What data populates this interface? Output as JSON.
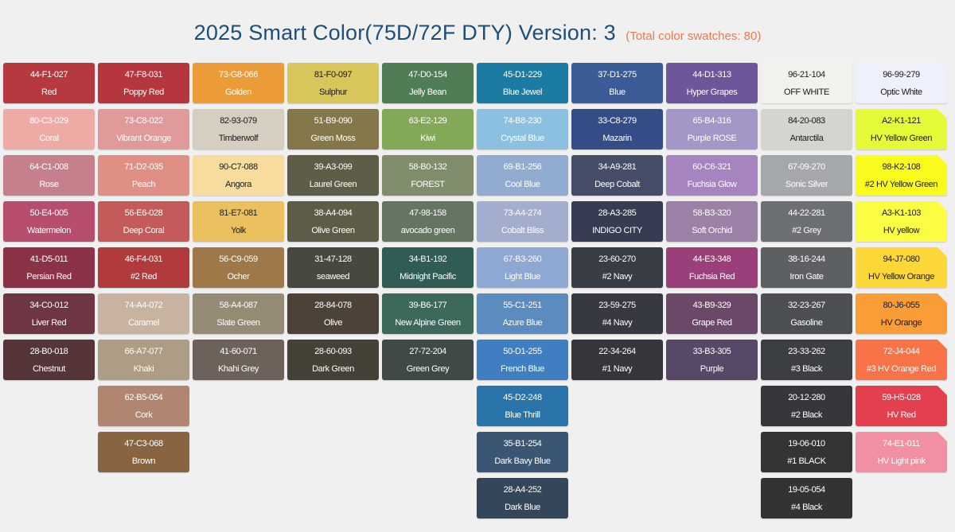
{
  "header": {
    "title": "2025 Smart Color(75D/72F DTY) Version: 3",
    "count": "(Total color swatches: 80)"
  },
  "columns": [
    [
      {
        "code": "44-F1-027",
        "name": "Red",
        "color": "#b5393f",
        "text": "dark"
      },
      {
        "code": "80-C3-029",
        "name": "Coral",
        "color": "#eeaaa5",
        "text": "dark"
      },
      {
        "code": "64-C1-008",
        "name": "Rose",
        "color": "#c6808c",
        "text": "dark"
      },
      {
        "code": "50-E4-005",
        "name": "Watermelon",
        "color": "#b84e6d",
        "text": "dark"
      },
      {
        "code": "41-D5-011",
        "name": "Persian Red",
        "color": "#8c3246",
        "text": "dark"
      },
      {
        "code": "34-C0-012",
        "name": "Liver Red",
        "color": "#6d3642",
        "text": "dark"
      },
      {
        "code": "28-B0-018",
        "name": "Chestnut",
        "color": "#553538",
        "text": "dark"
      }
    ],
    [
      {
        "code": "47-F8-031",
        "name": "Poppy Red",
        "color": "#b5373d",
        "text": "dark"
      },
      {
        "code": "73-C8-022",
        "name": "Vibrant Orange",
        "color": "#e09a9a",
        "text": "dark"
      },
      {
        "code": "71-D2-035",
        "name": "Peach",
        "color": "#e08f84",
        "text": "dark"
      },
      {
        "code": "56-E6-028",
        "name": "Deep Coral",
        "color": "#c55a5b",
        "text": "dark"
      },
      {
        "code": "46-F4-031",
        "name": "#2 Red",
        "color": "#b13a3c",
        "text": "dark"
      },
      {
        "code": "74-A4-072",
        "name": "Caramel",
        "color": "#c7b3a0",
        "text": "dark"
      },
      {
        "code": "66-A7-077",
        "name": "Khaki",
        "color": "#ad9d85",
        "text": "dark"
      },
      {
        "code": "62-B5-054",
        "name": "Cork",
        "color": "#b08670",
        "text": "dark"
      },
      {
        "code": "47-C3-068",
        "name": "Brown",
        "color": "#896440",
        "text": "dark"
      }
    ],
    [
      {
        "code": "73-G8-066",
        "name": "Golden",
        "color": "#eb9c38",
        "text": "dark"
      },
      {
        "code": "82-93-079",
        "name": "Timberwolf",
        "color": "#d7cec2",
        "text": "light"
      },
      {
        "code": "90-C7-088",
        "name": "Angora",
        "color": "#f7dc9e",
        "text": "light"
      },
      {
        "code": "81-E7-081",
        "name": "Yolk",
        "color": "#ebc05f",
        "text": "light"
      },
      {
        "code": "56-C9-059",
        "name": "Ocher",
        "color": "#9e7849",
        "text": "dark"
      },
      {
        "code": "58-A4-087",
        "name": "Slate Green",
        "color": "#958b75",
        "text": "dark"
      },
      {
        "code": "41-60-071",
        "name": "Khahi Grey",
        "color": "#6c6259",
        "text": "dark"
      }
    ],
    [
      {
        "code": "81-F0-097",
        "name": "Sulphur",
        "color": "#d8c65a",
        "text": "light"
      },
      {
        "code": "51-B9-090",
        "name": "Green Moss",
        "color": "#84784a",
        "text": "dark"
      },
      {
        "code": "39-A3-099",
        "name": "Laurel Green",
        "color": "#5e5d48",
        "text": "dark"
      },
      {
        "code": "38-A4-094",
        "name": "Olive Green",
        "color": "#5d5c47",
        "text": "dark"
      },
      {
        "code": "31-47-128",
        "name": "seaweed",
        "color": "#47493e",
        "text": "dark"
      },
      {
        "code": "28-84-078",
        "name": "Olive",
        "color": "#4c4238",
        "text": "dark"
      },
      {
        "code": "28-60-093",
        "name": "Dark Green",
        "color": "#444136",
        "text": "dark"
      }
    ],
    [
      {
        "code": "47-D0-154",
        "name": "Jelly Bean",
        "color": "#4f7d55",
        "text": "dark"
      },
      {
        "code": "63-E2-129",
        "name": "Kiwi",
        "color": "#83a858",
        "text": "dark"
      },
      {
        "code": "58-B0-132",
        "name": "FOREST",
        "color": "#7f8d6c",
        "text": "dark"
      },
      {
        "code": "47-98-158",
        "name": "avocado green",
        "color": "#647562",
        "text": "dark"
      },
      {
        "code": "34-B1-192",
        "name": "Midnight Pacific",
        "color": "#2f5d56",
        "text": "dark"
      },
      {
        "code": "39-B6-177",
        "name": "New Alpine Green",
        "color": "#3d685c",
        "text": "dark"
      },
      {
        "code": "27-72-204",
        "name": "Green Grey",
        "color": "#3f4a48",
        "text": "dark"
      }
    ],
    [
      {
        "code": "45-D1-229",
        "name": "Blue Jewel",
        "color": "#1b7ba3",
        "text": "dark"
      },
      {
        "code": "74-B8-230",
        "name": "Crystal Blue",
        "color": "#8cc0e0",
        "text": "dark"
      },
      {
        "code": "69-B1-256",
        "name": "Cool Blue",
        "color": "#92acd1",
        "text": "dark"
      },
      {
        "code": "73-A4-274",
        "name": "Cobalt Bliss",
        "color": "#a3aecf",
        "text": "dark"
      },
      {
        "code": "67-B3-260",
        "name": "Light Blue",
        "color": "#8da8d3",
        "text": "dark"
      },
      {
        "code": "55-C1-251",
        "name": "Azure Blue",
        "color": "#5b8bbf",
        "text": "dark"
      },
      {
        "code": "50-D1-255",
        "name": "French Blue",
        "color": "#3f7ec0",
        "text": "dark"
      },
      {
        "code": "45-D2-248",
        "name": "Blue Thrill",
        "color": "#2974a8",
        "text": "dark"
      },
      {
        "code": "35-B1-254",
        "name": "Dark Bavy Blue",
        "color": "#3b5673",
        "text": "dark"
      },
      {
        "code": "28-A4-252",
        "name": "Dark Blue",
        "color": "#34465a",
        "text": "dark"
      }
    ],
    [
      {
        "code": "37-D1-275",
        "name": "Blue",
        "color": "#3c5c97",
        "text": "dark"
      },
      {
        "code": "33-C8-279",
        "name": "Mazarin",
        "color": "#354d87",
        "text": "dark"
      },
      {
        "code": "34-A9-281",
        "name": "Deep Cobalt",
        "color": "#454d68",
        "text": "dark"
      },
      {
        "code": "28-A3-285",
        "name": "INDIGO CITY",
        "color": "#363c52",
        "text": "dark"
      },
      {
        "code": "23-60-270",
        "name": "#2 Navy",
        "color": "#383c45",
        "text": "dark"
      },
      {
        "code": "23-59-275",
        "name": "#4 Navy",
        "color": "#363942",
        "text": "dark"
      },
      {
        "code": "22-34-264",
        "name": "#1 Navy",
        "color": "#34363c",
        "text": "dark"
      }
    ],
    [
      {
        "code": "44-D1-313",
        "name": "Hyper Grapes",
        "color": "#6f5599",
        "text": "dark"
      },
      {
        "code": "65-B4-316",
        "name": "Purple ROSE",
        "color": "#a596c8",
        "text": "dark"
      },
      {
        "code": "60-C6-321",
        "name": "Fuchsia Glow",
        "color": "#a584c0",
        "text": "dark"
      },
      {
        "code": "58-B3-320",
        "name": "Soft Orchid",
        "color": "#9c81a6",
        "text": "dark"
      },
      {
        "code": "44-E3-348",
        "name": "Fuchsia Red",
        "color": "#9a3f79",
        "text": "dark"
      },
      {
        "code": "43-B9-329",
        "name": "Grape Red",
        "color": "#6c4868",
        "text": "dark"
      },
      {
        "code": "33-B3-305",
        "name": "Purple",
        "color": "#564866",
        "text": "dark"
      }
    ],
    [
      {
        "code": "96-21-104",
        "name": "OFF WHITE",
        "color": "#f2f2ec",
        "text": "light"
      },
      {
        "code": "84-20-083",
        "name": "Antarctila",
        "color": "#d5d4cf",
        "text": "light"
      },
      {
        "code": "67-09-270",
        "name": "Sonic Silver",
        "color": "#a4a8ab",
        "text": "dark"
      },
      {
        "code": "44-22-281",
        "name": "#2 Grey",
        "color": "#6c6f74",
        "text": "dark"
      },
      {
        "code": "38-16-244",
        "name": "Iron Gate",
        "color": "#5d6063",
        "text": "dark"
      },
      {
        "code": "32-23-267",
        "name": "Gasoline",
        "color": "#4c5055",
        "text": "dark"
      },
      {
        "code": "23-33-262",
        "name": "#3 Black",
        "color": "#3b3e43",
        "text": "dark"
      },
      {
        "code": "20-12-280",
        "name": "#2 Black",
        "color": "#35373a",
        "text": "dark"
      },
      {
        "code": "19-06-010",
        "name": "#1 BLACK",
        "color": "#333435",
        "text": "dark"
      },
      {
        "code": "19-05-054",
        "name": "#4 Black",
        "color": "#323334",
        "text": "dark"
      }
    ],
    [
      {
        "code": "96-99-279",
        "name": "Optic White",
        "color": "#eef0fb",
        "text": "light",
        "fold": true
      },
      {
        "code": "A2-K1-121",
        "name": "HV Yellow Green",
        "color": "#e6fb38",
        "text": "light",
        "fold": true
      },
      {
        "code": "98-K2-108",
        "name": "#2 HV Yellow Green",
        "color": "#f9fc1c",
        "text": "light",
        "fold": true
      },
      {
        "code": "A3-K1-103",
        "name": "HV yellow",
        "color": "#fbfd42",
        "text": "light",
        "fold": true
      },
      {
        "code": "94-J7-080",
        "name": "HV Yellow Orange",
        "color": "#fbd737",
        "text": "light",
        "fold": true
      },
      {
        "code": "80-J6-055",
        "name": "HV Orange",
        "color": "#fa9d36",
        "text": "light",
        "fold": true
      },
      {
        "code": "72-J4-044",
        "name": "#3 HV Orange Red",
        "color": "#f87347",
        "text": "dark",
        "fold": true
      },
      {
        "code": "59-H5-028",
        "name": "HV Red",
        "color": "#e43f4f",
        "text": "dark",
        "fold": true
      },
      {
        "code": "74-E1-011",
        "name": "HV Light pink",
        "color": "#f290a3",
        "text": "dark",
        "fold": true
      }
    ]
  ]
}
